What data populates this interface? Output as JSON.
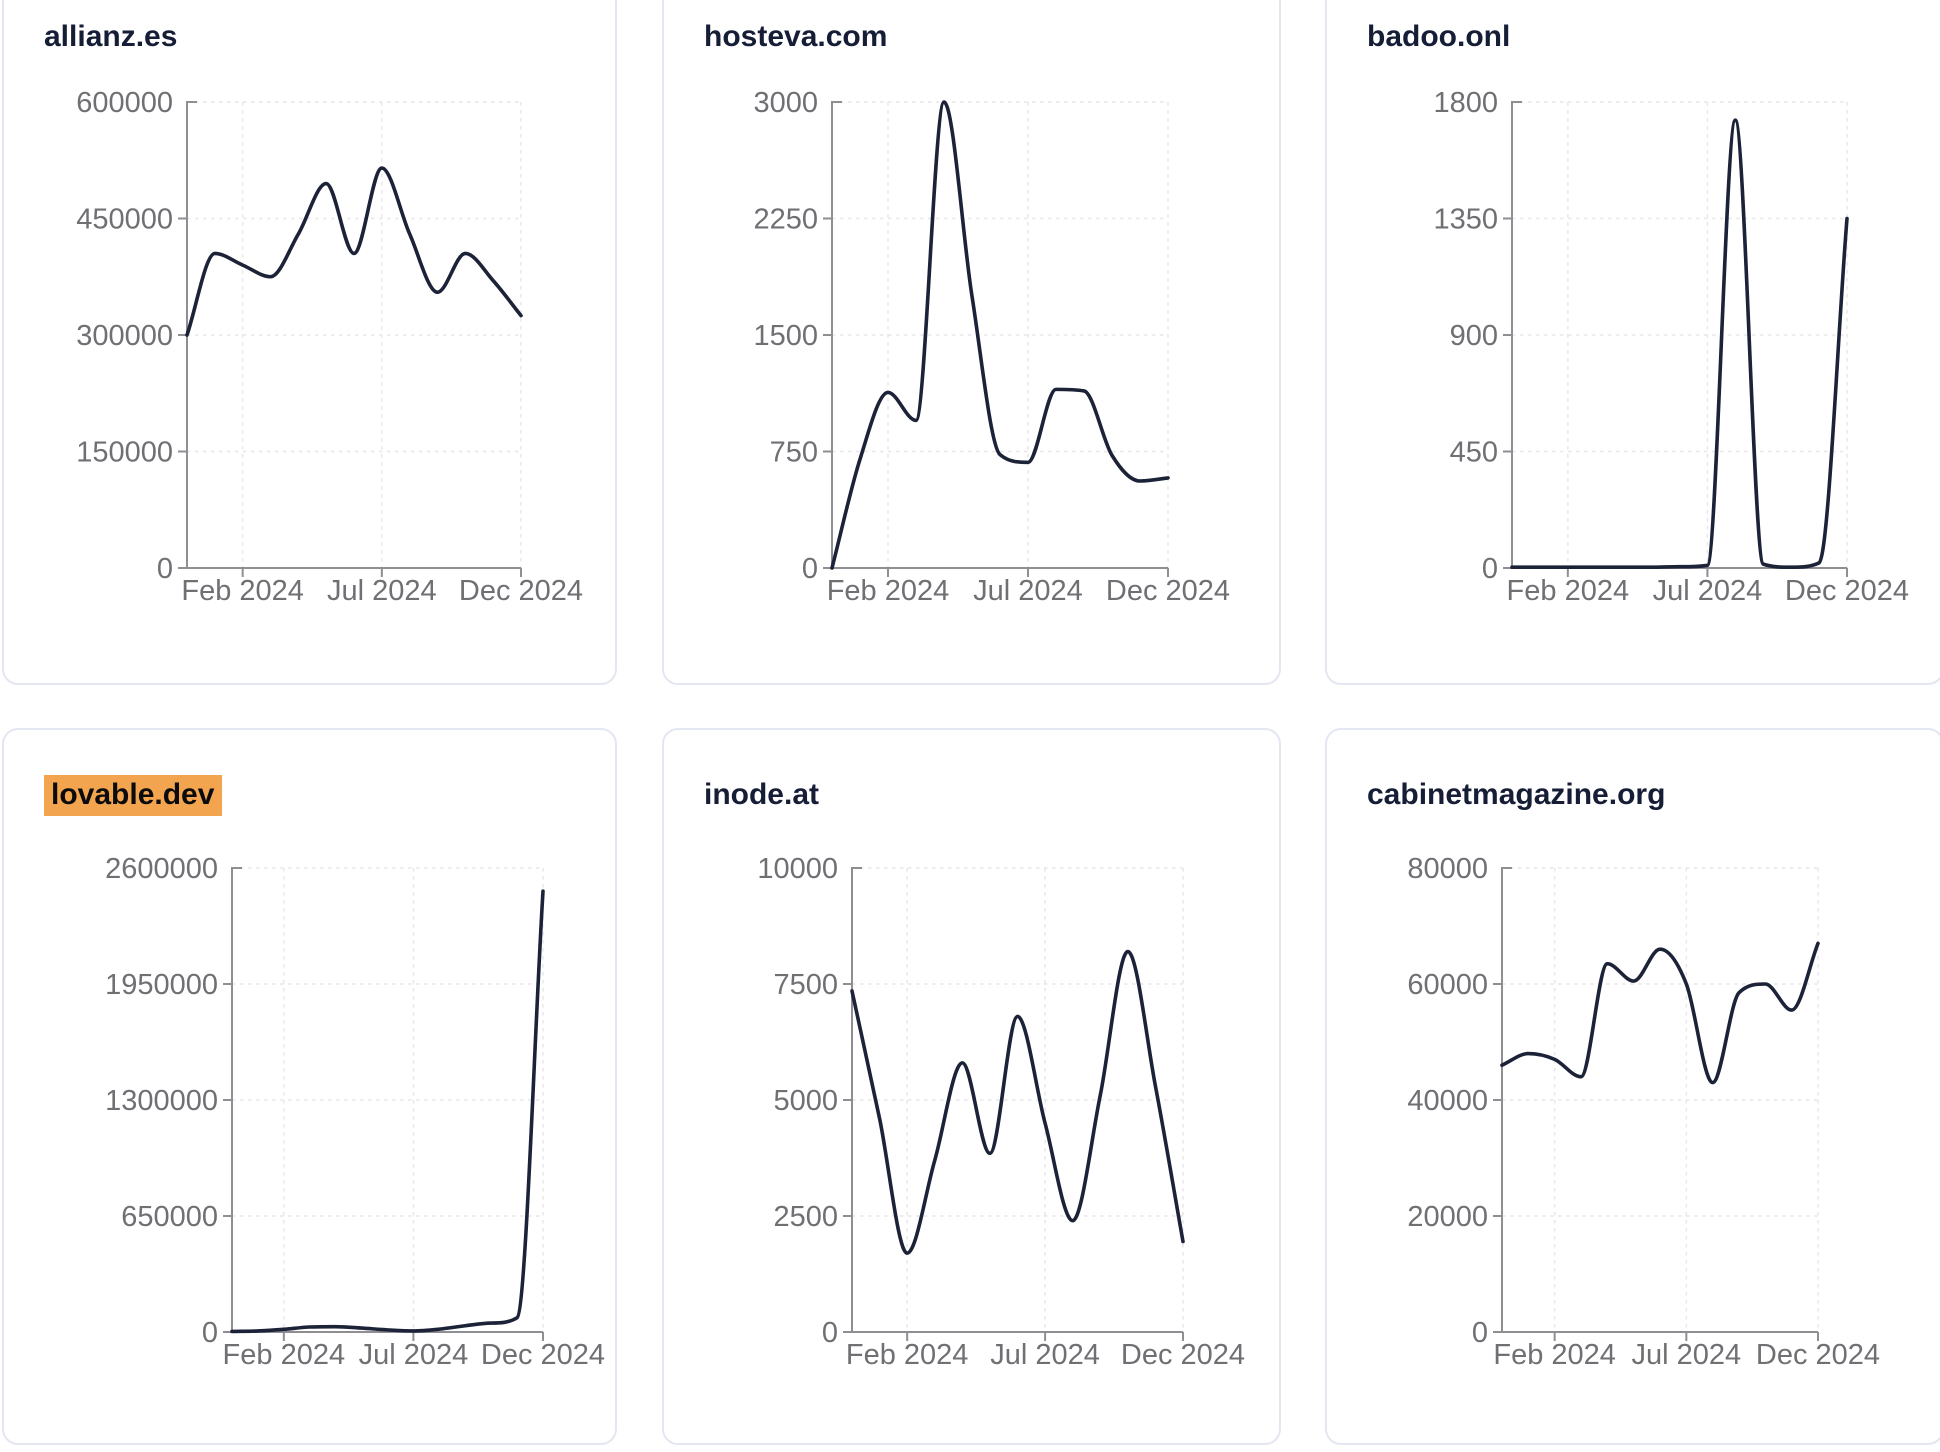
{
  "page": {
    "description": "Dashboard grid of six domain traffic line charts for 2024",
    "highlighted_domain": "lovable.dev"
  },
  "colors": {
    "line": "#1c2238",
    "title_text": "#161d36",
    "tick_text": "#6f6f74",
    "axis": "#8e8e93",
    "grid": "#e7e7ea",
    "card_border": "#e4e7f1",
    "card_background": "#ffffff",
    "page_background": "#ffffff",
    "highlight": "#f2a44f",
    "highlight_text": "#0b0b0d"
  },
  "chart_data": [
    {
      "type": "line",
      "title": "allianz.es",
      "highlighted": false,
      "x": [
        "Dec 2023",
        "Jan 2024",
        "Feb 2024",
        "Mar 2024",
        "Apr 2024",
        "May 2024",
        "Jun 2024",
        "Jul 2024",
        "Aug 2024",
        "Sep 2024",
        "Oct 2024",
        "Nov 2024",
        "Dec 2024"
      ],
      "values": [
        300000,
        405000,
        390000,
        375000,
        430000,
        495000,
        405000,
        515000,
        430000,
        355000,
        405000,
        370000,
        325000
      ],
      "y_ticks": [
        0,
        150000,
        300000,
        450000,
        600000
      ],
      "ylim": [
        0,
        600000
      ],
      "x_tick_labels": [
        "Feb 2024",
        "Jul 2024",
        "Dec 2024"
      ],
      "grid": true,
      "legend": "none"
    },
    {
      "type": "line",
      "title": "hosteva.com",
      "highlighted": false,
      "x": [
        "Dec 2023",
        "Jan 2024",
        "Feb 2024",
        "Mar 2024",
        "Apr 2024",
        "May 2024",
        "Jun 2024",
        "Jul 2024",
        "Aug 2024",
        "Sep 2024",
        "Oct 2024",
        "Nov 2024",
        "Dec 2024"
      ],
      "values": [
        0,
        700,
        1130,
        950,
        3000,
        1750,
        730,
        680,
        1150,
        1140,
        725,
        560,
        580
      ],
      "y_ticks": [
        0,
        750,
        1500,
        2250,
        3000
      ],
      "ylim": [
        0,
        3000
      ],
      "x_tick_labels": [
        "Feb 2024",
        "Jul 2024",
        "Dec 2024"
      ],
      "grid": true,
      "legend": "none"
    },
    {
      "type": "line",
      "title": "badoo.onl",
      "highlighted": false,
      "x": [
        "Dec 2023",
        "Jan 2024",
        "Feb 2024",
        "Mar 2024",
        "Apr 2024",
        "May 2024",
        "Jun 2024",
        "Jul 2024",
        "Aug 2024",
        "Sep 2024",
        "Oct 2024",
        "Nov 2024",
        "Dec 2024"
      ],
      "values": [
        3,
        3,
        3,
        3,
        3,
        3,
        5,
        10,
        1730,
        15,
        3,
        20,
        1350
      ],
      "y_ticks": [
        0,
        450,
        900,
        1350,
        1800
      ],
      "ylim": [
        0,
        1800
      ],
      "x_tick_labels": [
        "Feb 2024",
        "Jul 2024",
        "Dec 2024"
      ],
      "grid": true,
      "legend": "none"
    },
    {
      "type": "line",
      "title": "lovable.dev",
      "highlighted": true,
      "x": [
        "Dec 2023",
        "Jan 2024",
        "Feb 2024",
        "Mar 2024",
        "Apr 2024",
        "May 2024",
        "Jun 2024",
        "Jul 2024",
        "Aug 2024",
        "Sep 2024",
        "Oct 2024",
        "Nov 2024",
        "Dec 2024"
      ],
      "values": [
        3000,
        6000,
        15000,
        28000,
        30000,
        22000,
        12000,
        6000,
        16000,
        35000,
        50000,
        80000,
        2470000
      ],
      "y_ticks": [
        0,
        650000,
        1300000,
        1950000,
        2600000
      ],
      "ylim": [
        0,
        2600000
      ],
      "x_tick_labels": [
        "Feb 2024",
        "Jul 2024",
        "Dec 2024"
      ],
      "grid": true,
      "legend": "none"
    },
    {
      "type": "line",
      "title": "inode.at",
      "highlighted": false,
      "x": [
        "Dec 2023",
        "Jan 2024",
        "Feb 2024",
        "Mar 2024",
        "Apr 2024",
        "May 2024",
        "Jun 2024",
        "Jul 2024",
        "Aug 2024",
        "Sep 2024",
        "Oct 2024",
        "Nov 2024",
        "Dec 2024"
      ],
      "values": [
        7350,
        4600,
        1700,
        3700,
        5800,
        3850,
        6800,
        4500,
        2400,
        5100,
        8200,
        5300,
        1950
      ],
      "y_ticks": [
        0,
        2500,
        5000,
        7500,
        10000
      ],
      "ylim": [
        0,
        10000
      ],
      "x_tick_labels": [
        "Feb 2024",
        "Jul 2024",
        "Dec 2024"
      ],
      "grid": true,
      "legend": "none"
    },
    {
      "type": "line",
      "title": "cabinetmagazine.org",
      "highlighted": false,
      "x": [
        "Dec 2023",
        "Jan 2024",
        "Feb 2024",
        "Mar 2024",
        "Apr 2024",
        "May 2024",
        "Jun 2024",
        "Jul 2024",
        "Aug 2024",
        "Sep 2024",
        "Oct 2024",
        "Nov 2024",
        "Dec 2024"
      ],
      "values": [
        46000,
        48000,
        47000,
        44000,
        63500,
        60500,
        66000,
        60000,
        43000,
        58500,
        60000,
        55500,
        67000
      ],
      "y_ticks": [
        0,
        20000,
        40000,
        60000,
        80000
      ],
      "ylim": [
        0,
        80000
      ],
      "x_tick_labels": [
        "Feb 2024",
        "Jul 2024",
        "Dec 2024"
      ],
      "grid": true,
      "legend": "none"
    }
  ]
}
